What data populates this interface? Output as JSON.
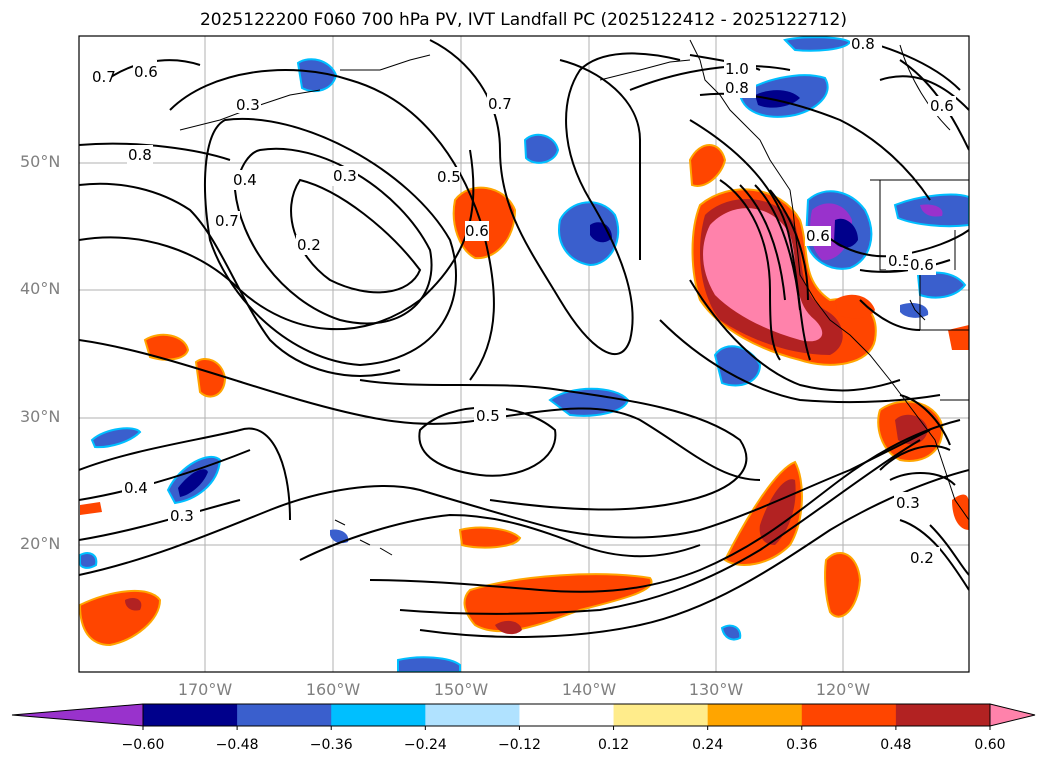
{
  "title": "2025122200 F060 700 hPa PV, IVT Landfall PC (2025122412 - 2025122712)",
  "lat_labels": [
    "50°N",
    "40°N",
    "30°N",
    "20°N"
  ],
  "lon_labels": [
    "170°W",
    "160°W",
    "150°W",
    "140°W",
    "130°W",
    "120°W"
  ],
  "colorbar": {
    "ticks": [
      "−0.60",
      "−0.48",
      "−0.36",
      "−0.24",
      "−0.12",
      "0.12",
      "0.24",
      "0.36",
      "0.48",
      "0.60"
    ],
    "colors": [
      "#9932cc",
      "#00008b",
      "#3a5fcd",
      "#00bfff",
      "#b0e2ff",
      "#ffffff",
      "#ffec8b",
      "#ffa500",
      "#ff4500",
      "#b22222",
      "#ff82ab"
    ]
  },
  "contour_labels": [
    "0.7",
    "0.6",
    "0.3",
    "0.8",
    "0.4",
    "0.7",
    "0.2",
    "0.3",
    "0.5",
    "0.6",
    "0.7",
    "1.0",
    "0.8",
    "0.8",
    "0.6",
    "0.5",
    "0.6",
    "0.5",
    "0.4",
    "0.3",
    "0.3",
    "0.2",
    "0.6"
  ]
}
